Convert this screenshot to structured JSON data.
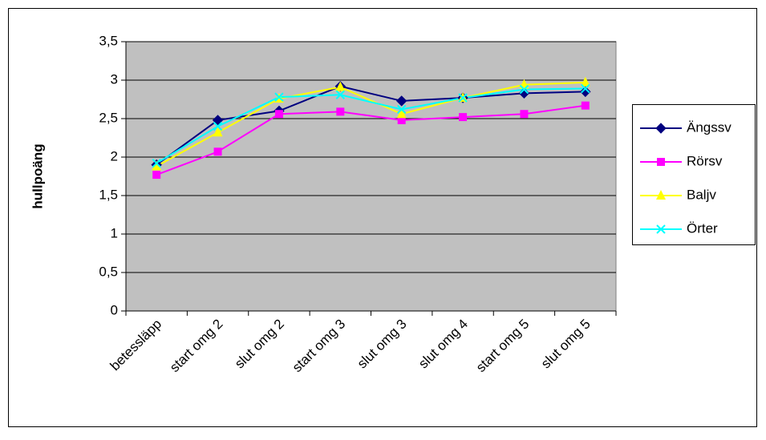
{
  "chart_data": {
    "type": "line",
    "y_label": "hullpoäng",
    "categories": [
      "betessläpp",
      "start omg 2",
      "slut omg 2",
      "start omg 3",
      "slut omg 3",
      "slut omg 4",
      "start omg 5",
      "slut omg 5"
    ],
    "series": [
      {
        "name": "Ängssv",
        "color": "#000080",
        "marker": "diamond",
        "values": [
          1.9,
          2.48,
          2.6,
          2.92,
          2.73,
          2.77,
          2.83,
          2.85
        ]
      },
      {
        "name": "Rörsv",
        "color": "#ff00ff",
        "marker": "square",
        "values": [
          1.77,
          2.07,
          2.56,
          2.59,
          2.48,
          2.52,
          2.56,
          2.67
        ]
      },
      {
        "name": "Baljv",
        "color": "#ffff00",
        "marker": "triangle",
        "values": [
          1.88,
          2.32,
          2.76,
          2.91,
          2.56,
          2.77,
          2.94,
          2.97
        ]
      },
      {
        "name": "Örter",
        "color": "#00ffff",
        "marker": "x",
        "values": [
          1.92,
          2.4,
          2.78,
          2.81,
          2.62,
          2.77,
          2.88,
          2.89
        ]
      }
    ],
    "ylim": [
      0,
      3.5
    ],
    "yticks": [
      0,
      {
        "value": 0.5,
        "label": "0,5"
      },
      1,
      {
        "value": 1.5,
        "label": "1,5"
      },
      2,
      {
        "value": 2.5,
        "label": "2,5"
      },
      3,
      {
        "value": 3.5,
        "label": "3,5"
      }
    ],
    "grid": true,
    "plot_background": "#c0c0c0",
    "legend": "right"
  }
}
